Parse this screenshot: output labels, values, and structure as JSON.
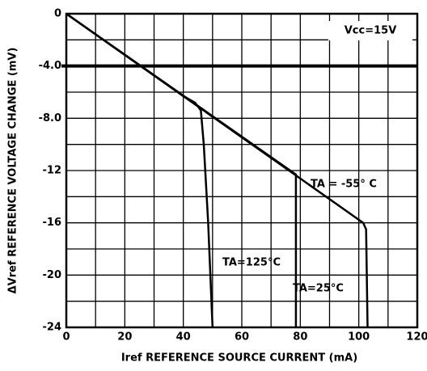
{
  "chart_data": {
    "type": "line",
    "xlabel": "Iref REFERENCE SOURCE CURRENT (mA)",
    "ylabel": "ΔVref REFERENCE VOLTAGE CHANGE (mV)",
    "annotation": "Vcc=15V",
    "xlim": [
      0,
      120
    ],
    "xticks": [
      0,
      20,
      40,
      60,
      80,
      100,
      120
    ],
    "ylim": [
      -24,
      0
    ],
    "yticks": [
      0,
      {
        "value": -4,
        "label": "-4.0"
      },
      {
        "value": -8,
        "label": "-8.0"
      },
      -12,
      -16,
      -20,
      -24
    ],
    "reference_line": -4,
    "grid": true,
    "series": [
      {
        "name": "TA=125°C",
        "color": "#000000",
        "x": [
          0,
          40,
          44,
          46,
          47,
          48.5,
          50
        ],
        "values": [
          0,
          -6.3,
          -6.8,
          -7.4,
          -10,
          -16,
          -24
        ]
      },
      {
        "name": "TA=25°C",
        "color": "#000000",
        "x": [
          0,
          78.5,
          78.5
        ],
        "values": [
          0,
          -12.3,
          -24
        ]
      },
      {
        "name": "TA = -55° C",
        "color": "#000000",
        "x": [
          0,
          101.5,
          102.5,
          103
        ],
        "values": [
          0,
          -16,
          -16.5,
          -24
        ]
      }
    ]
  }
}
